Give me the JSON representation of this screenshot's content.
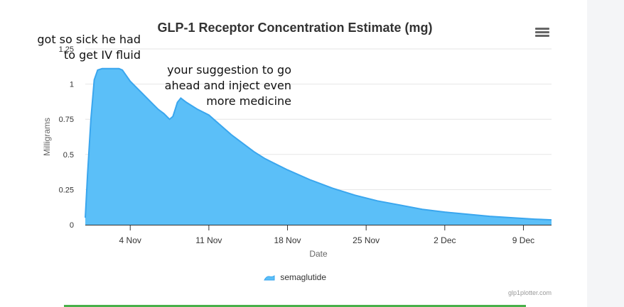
{
  "chart_data": {
    "type": "area",
    "title": "GLP-1 Receptor Concentration Estimate (mg)",
    "xlabel": "Date",
    "ylabel": "Milligrams",
    "ylim": [
      0,
      1.25
    ],
    "y_ticks": [
      "0",
      "0.25",
      "0.5",
      "0.75",
      "1",
      "1.25"
    ],
    "x_tick_labels": [
      "4 Nov",
      "11 Nov",
      "18 Nov",
      "25 Nov",
      "2 Dec",
      "9 Dec"
    ],
    "x_tick_days": [
      4,
      11,
      18,
      25,
      32,
      39
    ],
    "x_range_days": [
      0,
      41.5
    ],
    "grid": true,
    "legend": "bottom-center",
    "series": [
      {
        "name": "semaglutide",
        "color": "#5bbff8",
        "line_color": "#3aa6ee",
        "x_days": [
          0,
          0.2,
          0.5,
          0.8,
          1.1,
          1.5,
          1.8,
          2.2,
          3.0,
          3.3,
          4.0,
          5.0,
          6.0,
          6.5,
          7.0,
          7.5,
          7.8,
          8.0,
          8.2,
          8.5,
          9.0,
          10.0,
          11.0,
          12.0,
          13.0,
          14.0,
          15.0,
          16.0,
          18.0,
          20.0,
          22.0,
          24.0,
          26.0,
          28.0,
          30.0,
          32.0,
          34.0,
          36.0,
          38.0,
          40.0,
          41.5
        ],
        "values": [
          0.05,
          0.36,
          0.75,
          1.03,
          1.1,
          1.11,
          1.11,
          1.11,
          1.11,
          1.1,
          1.02,
          0.94,
          0.86,
          0.82,
          0.79,
          0.75,
          0.77,
          0.82,
          0.87,
          0.9,
          0.87,
          0.82,
          0.78,
          0.71,
          0.64,
          0.58,
          0.52,
          0.47,
          0.39,
          0.32,
          0.26,
          0.21,
          0.17,
          0.14,
          0.11,
          0.09,
          0.075,
          0.06,
          0.05,
          0.04,
          0.035
        ]
      }
    ]
  },
  "annotations": [
    "got so sick he had to get IV fluid",
    "your suggestion to go ahead and inject even more medicine"
  ],
  "credits": "glp1plotter.com"
}
